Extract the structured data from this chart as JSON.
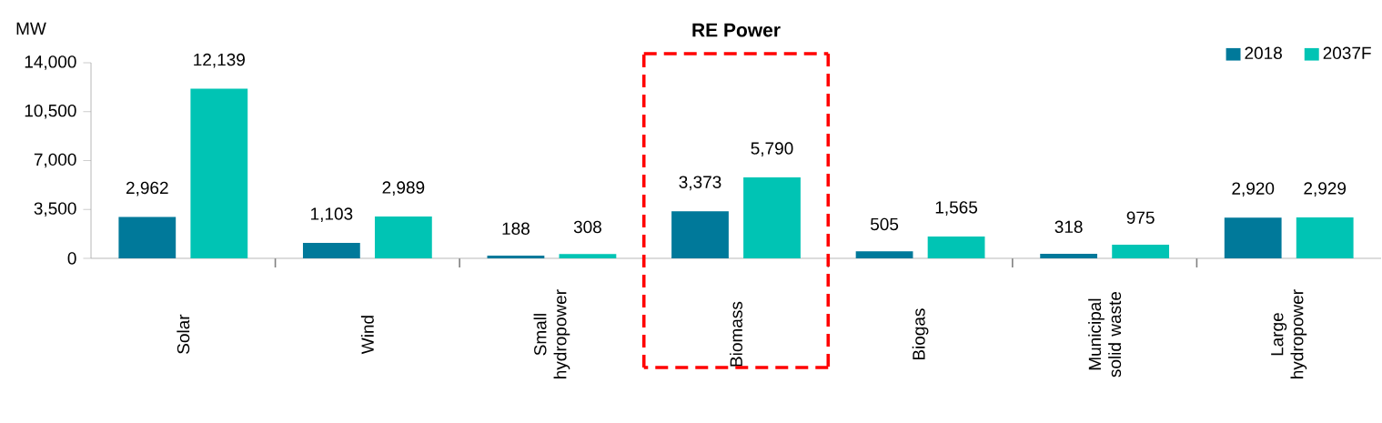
{
  "chart_data": {
    "type": "bar",
    "title": "RE Power",
    "ylabel": "MW",
    "categories": [
      "Solar",
      "Wind",
      "Small hydropower",
      "Biomass",
      "Biogas",
      "Municipal solid waste",
      "Large hydropower"
    ],
    "series": [
      {
        "name": "2018",
        "color": "#00799a",
        "values": [
          2962,
          1103,
          188,
          3373,
          505,
          318,
          2920
        ],
        "value_labels": [
          "2,962",
          "1,103",
          "188",
          "3,373",
          "505",
          "318",
          "2,920"
        ]
      },
      {
        "name": "2037F",
        "color": "#00c4b4",
        "values": [
          12139,
          2989,
          308,
          5790,
          1565,
          975,
          2929
        ],
        "value_labels": [
          "12,139",
          "2,989",
          "308",
          "5,790",
          "1,565",
          "975",
          "2,929"
        ]
      }
    ],
    "ylim": [
      0,
      14000
    ],
    "yticks": [
      0,
      {
        "value": 3500,
        "label": "3,500"
      },
      {
        "value": 7000,
        "label": "7,000"
      },
      {
        "value": 10500,
        "label": "10,500"
      },
      {
        "value": 14000,
        "label": "14,000"
      }
    ],
    "legend": "top right",
    "grid": false
  }
}
